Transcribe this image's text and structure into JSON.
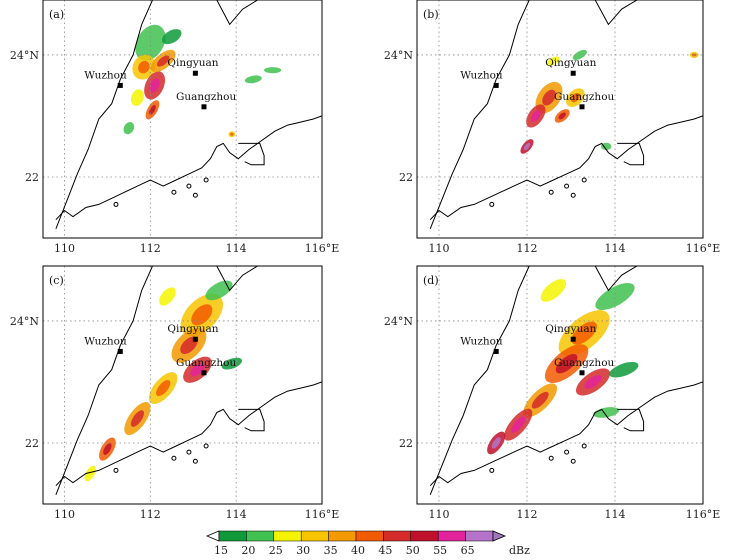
{
  "panels": [
    {
      "id": "a",
      "label": "(a)"
    },
    {
      "id": "b",
      "label": "(b)"
    },
    {
      "id": "c",
      "label": "(c)"
    },
    {
      "id": "d",
      "label": "(d)"
    }
  ],
  "lat_ticks": [
    {
      "value": 24,
      "label": "24°N"
    },
    {
      "value": 22,
      "label": "22"
    }
  ],
  "lon_ticks": [
    {
      "value": 110,
      "label": "110"
    },
    {
      "value": 112,
      "label": "112"
    },
    {
      "value": 114,
      "label": "114"
    },
    {
      "value": 116,
      "label": "116°E"
    }
  ],
  "cities": [
    {
      "name": "Wuzhou",
      "lon": 111.3,
      "lat": 23.5
    },
    {
      "name": "Qingyuan",
      "lon": 113.05,
      "lat": 23.7
    },
    {
      "name": "Guangzhou",
      "lon": 113.25,
      "lat": 23.15
    }
  ],
  "colorbar": {
    "unit": "dBz",
    "levels": [
      "15",
      "20",
      "25",
      "30",
      "35",
      "40",
      "45",
      "50",
      "55",
      "65"
    ],
    "colors": [
      "#0e9a3a",
      "#41c14f",
      "#f4f400",
      "#f6c400",
      "#f29a00",
      "#f25a00",
      "#d42a2a",
      "#c0102a",
      "#e2239c",
      "#b472c9",
      "#9b7bb8"
    ]
  },
  "map_colors": {
    "coast": "#000000",
    "grid": "#8a8a8a"
  }
}
